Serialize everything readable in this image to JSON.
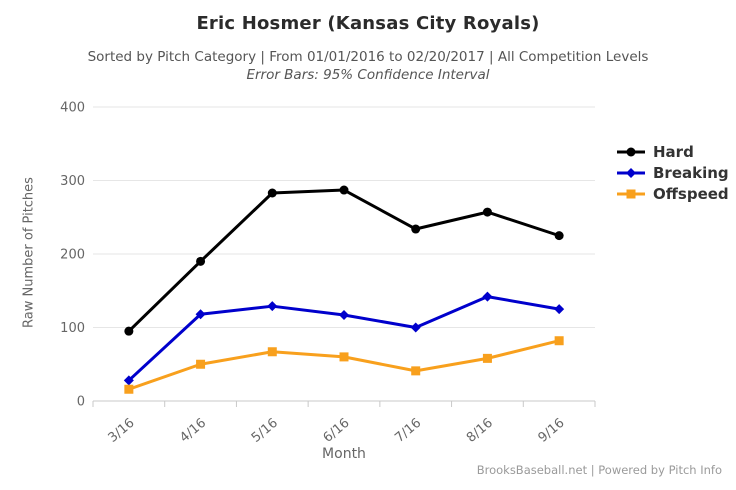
{
  "header": {
    "title": "Eric Hosmer (Kansas City Royals)",
    "subtitle": "Sorted by Pitch Category | From 01/01/2016 to 02/20/2017 | All Competition Levels",
    "error_bars_note": "Error Bars: 95% Confidence Interval"
  },
  "footer": {
    "credit": "BrooksBaseball.net | Powered by Pitch Info"
  },
  "colors": {
    "hard": "#000000",
    "breaking": "#0000cc",
    "offspeed": "#f8a01d",
    "grid": "#e6e6e6",
    "axis": "#c8c8c8",
    "tick_label": "#666666"
  },
  "chart_data": {
    "type": "line",
    "title": "Eric Hosmer (Kansas City Royals)",
    "categories": [
      "3/16",
      "4/16",
      "5/16",
      "6/16",
      "7/16",
      "8/16",
      "9/16"
    ],
    "series": [
      {
        "name": "Hard",
        "color": "#000000",
        "marker": "circle",
        "values": [
          95,
          190,
          283,
          287,
          234,
          257,
          225
        ]
      },
      {
        "name": "Breaking",
        "color": "#0000cc",
        "marker": "diamond",
        "values": [
          28,
          118,
          129,
          117,
          100,
          142,
          125
        ]
      },
      {
        "name": "Offspeed",
        "color": "#f8a01d",
        "marker": "square",
        "values": [
          16,
          50,
          67,
          60,
          41,
          58,
          82
        ]
      }
    ],
    "xlabel": "Month",
    "ylabel": "Raw Number of Pitches",
    "ylim": [
      0,
      400
    ],
    "yticks": [
      0,
      100,
      200,
      300,
      400
    ],
    "grid": "horizontal",
    "legend_position": "right"
  }
}
